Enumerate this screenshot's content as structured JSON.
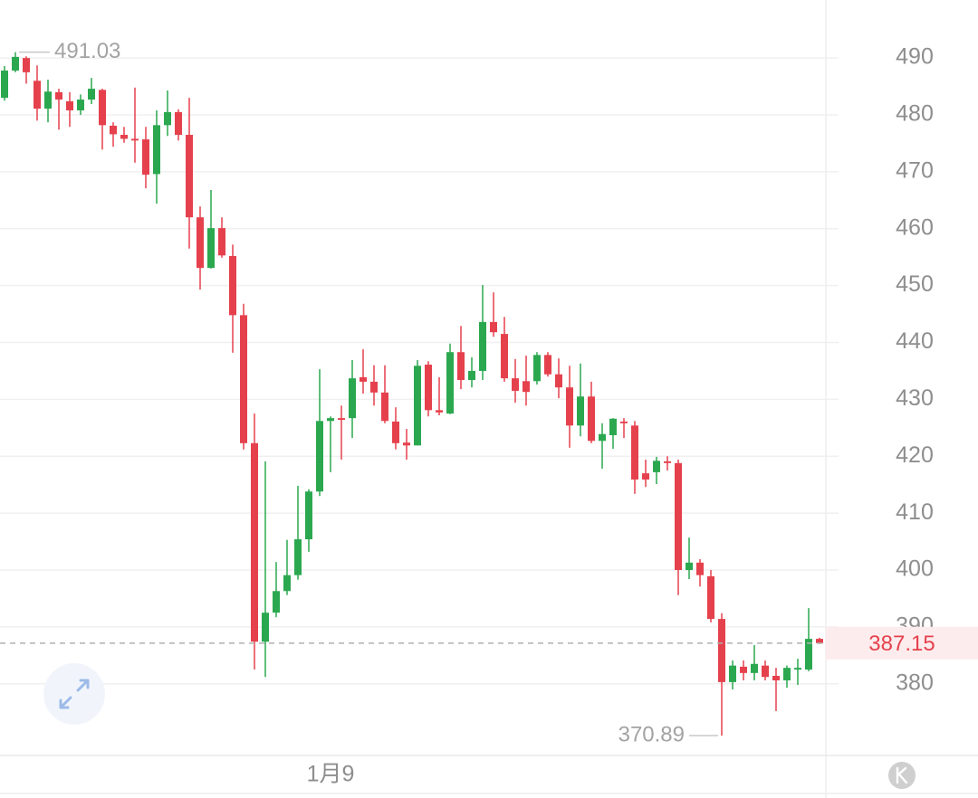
{
  "chart_data": {
    "type": "candlestick",
    "categories": [
      null,
      null,
      null,
      null,
      null,
      null,
      null,
      null,
      null,
      null,
      null,
      null,
      null,
      null,
      null,
      null,
      null,
      null,
      null,
      null,
      null,
      null,
      null,
      null,
      null,
      null,
      null,
      null,
      null,
      null,
      "1月9",
      null,
      null,
      null,
      null,
      null,
      null,
      null,
      null,
      null,
      null,
      null,
      null,
      null,
      null,
      null,
      null,
      null,
      null,
      null,
      null,
      null,
      null,
      null,
      null,
      null,
      null,
      null,
      null,
      null,
      null,
      null,
      null,
      null,
      null,
      null,
      null,
      null,
      null,
      null,
      null,
      null,
      null,
      null,
      null,
      null
    ],
    "open": [
      483.0,
      487.8,
      490.0,
      486.0,
      481.1,
      484.0,
      482.4,
      480.8,
      482.7,
      484.4,
      478.1,
      476.5,
      475.8,
      475.7,
      469.6,
      478.2,
      480.5,
      476.5,
      462.0,
      453.1,
      460.1,
      455.2,
      444.8,
      422.3,
      387.4,
      392.5,
      396.3,
      399.1,
      405.4,
      413.8,
      426.2,
      426.7,
      426.7,
      433.9,
      433.1,
      431.2,
      426.1,
      422.4,
      421.9,
      436.1,
      428.1,
      427.5,
      438.3,
      433.4,
      435.0,
      443.6,
      441.5,
      433.7,
      433.2,
      433.2,
      437.8,
      434.4,
      432.1,
      425.4,
      430.5,
      422.7,
      423.7,
      426.1,
      425.4,
      417.0,
      417.2,
      419.1,
      418.8,
      400.0,
      401.3,
      398.9,
      391.4,
      380.3,
      383.0,
      381.9,
      383.2,
      381.4,
      380.6,
      382.5,
      382.5,
      387.9
    ],
    "high": [
      488.6,
      491.03,
      490.3,
      488.7,
      486.2,
      484.6,
      484.0,
      483.6,
      486.5,
      484.6,
      478.7,
      477.9,
      484.8,
      477.9,
      480.8,
      484.3,
      481.0,
      483.0,
      463.9,
      466.8,
      462.0,
      457.2,
      446.8,
      427.5,
      419.1,
      401.4,
      405.3,
      414.8,
      414.2,
      435.3,
      427.0,
      428.9,
      436.9,
      438.8,
      436.0,
      436.0,
      428.6,
      424.8,
      436.9,
      436.7,
      433.9,
      439.8,
      442.9,
      437.4,
      450.1,
      448.8,
      444.5,
      437.1,
      437.7,
      438.3,
      438.3,
      437.2,
      435.9,
      436.3,
      433.1,
      425.8,
      426.7,
      426.7,
      426.2,
      419.4,
      419.9,
      420.0,
      419.4,
      405.7,
      401.9,
      400.0,
      392.4,
      384.1,
      384.1,
      386.8,
      384.1,
      382.8,
      383.2,
      384.4,
      393.3,
      388.1
    ],
    "low": [
      482.5,
      487.5,
      485.5,
      479.0,
      478.7,
      477.4,
      477.9,
      480.0,
      481.9,
      473.9,
      474.4,
      475.1,
      471.6,
      467.1,
      464.4,
      476.3,
      475.5,
      456.5,
      449.3,
      453.0,
      454.9,
      438.2,
      421.2,
      382.5,
      381.2,
      391.7,
      395.6,
      398.3,
      403.2,
      413.0,
      417.2,
      419.4,
      423.2,
      431.0,
      428.9,
      425.8,
      421.2,
      419.4,
      421.9,
      427.0,
      427.2,
      427.4,
      431.8,
      432.1,
      433.4,
      441.0,
      433.1,
      429.4,
      428.9,
      432.6,
      434.0,
      430.2,
      421.5,
      423.5,
      422.3,
      417.8,
      421.3,
      423.2,
      413.4,
      414.6,
      415.1,
      417.5,
      395.6,
      398.4,
      397.1,
      390.8,
      370.89,
      379.0,
      380.6,
      380.6,
      380.6,
      375.2,
      379.3,
      379.8,
      382.2,
      387.0
    ],
    "close": [
      487.8,
      490.2,
      487.5,
      481.1,
      484.1,
      482.7,
      480.8,
      482.7,
      484.6,
      478.2,
      476.6,
      475.8,
      475.5,
      469.5,
      478.2,
      480.5,
      476.5,
      462.0,
      453.1,
      460.1,
      455.3,
      444.8,
      422.3,
      387.4,
      392.5,
      396.3,
      399.1,
      405.4,
      413.8,
      426.2,
      426.7,
      426.4,
      433.7,
      433.1,
      431.2,
      426.2,
      422.3,
      421.9,
      435.9,
      428.1,
      427.7,
      438.3,
      433.4,
      435.0,
      443.6,
      441.8,
      433.7,
      431.5,
      431.3,
      437.8,
      434.4,
      432.1,
      425.4,
      430.5,
      422.7,
      423.9,
      426.6,
      425.8,
      415.9,
      415.9,
      419.2,
      418.8,
      400.0,
      401.3,
      399.1,
      391.4,
      380.3,
      383.2,
      381.9,
      383.5,
      381.2,
      380.6,
      382.8,
      382.8,
      387.9,
      387.15
    ],
    "up_color": "#2ba84f",
    "down_color": "#e5414d",
    "ylim": [
      367.4,
      500.2
    ],
    "yticks": [
      380,
      390,
      400,
      410,
      420,
      430,
      440,
      450,
      460,
      470,
      480,
      490
    ],
    "grid": true
  }
}
